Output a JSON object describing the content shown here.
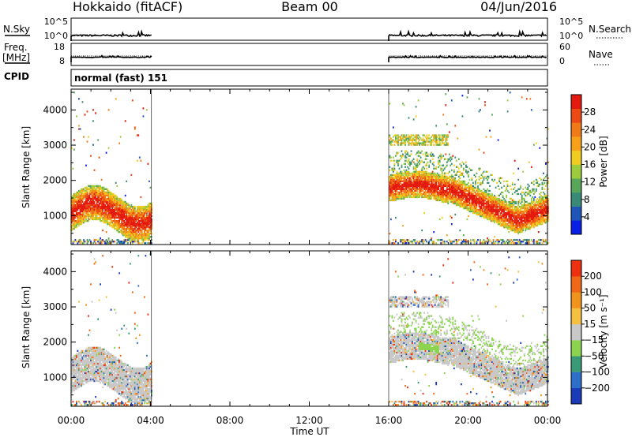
{
  "header": {
    "station": "Hokkaido (fitACF)",
    "beam": "Beam 00",
    "date": "04/Jun/2016"
  },
  "panels": {
    "nsky": {
      "label": "N.Sky",
      "ticks": [
        "10^5",
        "10^0"
      ]
    },
    "nsearch": {
      "label": "N.Search",
      "ticks": [
        "10^5",
        "10^0"
      ]
    },
    "freq": {
      "label_line1": "Freq.",
      "label_line2": "[MHz]",
      "ticks": [
        "18",
        "8"
      ]
    },
    "nave": {
      "label": "Nave",
      "ticks": [
        "60",
        "0"
      ]
    },
    "cpid": {
      "label": "CPID",
      "value": "normal (fast) 151"
    }
  },
  "chart_data": [
    {
      "type": "heatmap",
      "name": "power",
      "ylabel": "Slant Range [km]",
      "xlabel": "Time UT",
      "xlim": [
        0,
        24
      ],
      "ylim": [
        180,
        4590
      ],
      "yticks": [
        1000,
        2000,
        3000,
        4000
      ],
      "xticks": [
        "00:00",
        "04:00",
        "08:00",
        "12:00",
        "16:00",
        "20:00",
        "00:00"
      ],
      "data_intervals": [
        [
          0,
          4.05
        ],
        [
          16.0,
          24.0
        ]
      ],
      "colorbar": {
        "label": "Power [dB]",
        "ticks": [
          "28",
          "24",
          "20",
          "16",
          "12",
          "8",
          "4"
        ],
        "colors": [
          "#0a1fe6",
          "#1f55b8",
          "#3a8a78",
          "#58a65a",
          "#9ccc3e",
          "#f0cc20",
          "#f5a21a",
          "#f07a18",
          "#ec4a14",
          "#e41a10"
        ]
      }
    },
    {
      "type": "heatmap",
      "name": "velocity",
      "ylabel": "Slant Range [km]",
      "xlabel": "Time UT",
      "xlim": [
        0,
        24
      ],
      "ylim": [
        180,
        4590
      ],
      "yticks": [
        1000,
        2000,
        3000,
        4000
      ],
      "xticks": [
        "00:00",
        "04:00",
        "08:00",
        "12:00",
        "16:00",
        "20:00",
        "00:00"
      ],
      "data_intervals": [
        [
          0,
          4.05
        ],
        [
          16.0,
          24.0
        ]
      ],
      "colorbar": {
        "label": "Velocity [m s⁻¹]",
        "ticks": [
          "200",
          "100",
          "50",
          "15",
          "−15",
          "−50",
          "−100",
          "−200"
        ],
        "colors": [
          "#1a3ab8",
          "#2d6ec8",
          "#3a9a78",
          "#8cd450",
          "#c8c8c8",
          "#f5c040",
          "#f0941e",
          "#ee6818",
          "#ec3010"
        ]
      }
    }
  ]
}
